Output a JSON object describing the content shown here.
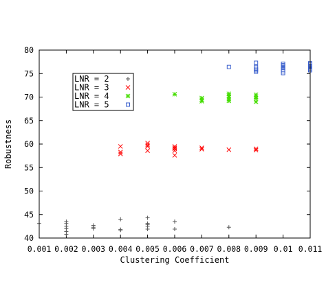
{
  "chart_data": {
    "type": "scatter",
    "title": "",
    "xlabel": "Clustering Coefficient",
    "ylabel": "Robustness",
    "xlim": [
      0.001,
      0.011
    ],
    "ylim": [
      40,
      80
    ],
    "xticks": [
      0.001,
      0.002,
      0.003,
      0.004,
      0.005,
      0.006,
      0.007,
      0.008,
      0.009,
      0.01,
      0.011
    ],
    "xtick_labels": [
      "0.001",
      "0.002",
      "0.003",
      "0.004",
      "0.005",
      "0.006",
      "0.007",
      "0.008",
      "0.009",
      "0.01",
      "0.011"
    ],
    "yticks": [
      40,
      45,
      50,
      55,
      60,
      65,
      70,
      75,
      80
    ],
    "ytick_labels": [
      "40",
      "45",
      "50",
      "55",
      "60",
      "65",
      "70",
      "75",
      "80"
    ],
    "grid": false,
    "legend_position": "upper-left",
    "series": [
      {
        "name": "LNR = 2",
        "marker": "plus",
        "color": "#555555",
        "points": [
          [
            0.001,
            43.1
          ],
          [
            0.002,
            43.5
          ],
          [
            0.002,
            43.1
          ],
          [
            0.002,
            42.5
          ],
          [
            0.002,
            42.0
          ],
          [
            0.002,
            41.4
          ],
          [
            0.002,
            40.8
          ],
          [
            0.003,
            42.7
          ],
          [
            0.003,
            42.3
          ],
          [
            0.003,
            42.0
          ],
          [
            0.004,
            44.0
          ],
          [
            0.004,
            41.8
          ],
          [
            0.004,
            41.7
          ],
          [
            0.005,
            44.3
          ],
          [
            0.005,
            43.1
          ],
          [
            0.005,
            42.9
          ],
          [
            0.005,
            42.5
          ],
          [
            0.005,
            41.9
          ],
          [
            0.006,
            43.5
          ],
          [
            0.006,
            41.9
          ],
          [
            0.008,
            42.3
          ]
        ]
      },
      {
        "name": "LNR = 3",
        "marker": "cross",
        "color": "#ff0000",
        "points": [
          [
            0.004,
            59.5
          ],
          [
            0.004,
            58.3
          ],
          [
            0.004,
            57.9
          ],
          [
            0.005,
            60.2
          ],
          [
            0.005,
            59.8
          ],
          [
            0.005,
            59.5
          ],
          [
            0.005,
            58.6
          ],
          [
            0.006,
            59.5
          ],
          [
            0.006,
            59.2
          ],
          [
            0.006,
            59.0
          ],
          [
            0.006,
            58.6
          ],
          [
            0.006,
            57.6
          ],
          [
            0.007,
            59.2
          ],
          [
            0.007,
            58.9
          ],
          [
            0.008,
            58.8
          ],
          [
            0.009,
            59.0
          ],
          [
            0.009,
            58.7
          ]
        ]
      },
      {
        "name": "LNR = 4",
        "marker": "star",
        "color": "#44dd00",
        "points": [
          [
            0.006,
            70.6
          ],
          [
            0.007,
            69.8
          ],
          [
            0.007,
            69.4
          ],
          [
            0.007,
            69.1
          ],
          [
            0.008,
            70.7
          ],
          [
            0.008,
            70.3
          ],
          [
            0.008,
            70.0
          ],
          [
            0.008,
            69.6
          ],
          [
            0.008,
            69.2
          ],
          [
            0.009,
            70.5
          ],
          [
            0.009,
            70.1
          ],
          [
            0.009,
            69.7
          ],
          [
            0.009,
            69.0
          ]
        ]
      },
      {
        "name": "LNR = 5",
        "marker": "square",
        "color": "#3a5fcd",
        "points": [
          [
            0.008,
            76.4
          ],
          [
            0.009,
            77.3
          ],
          [
            0.009,
            76.4
          ],
          [
            0.009,
            76.0
          ],
          [
            0.009,
            75.7
          ],
          [
            0.009,
            75.4
          ],
          [
            0.01,
            77.1
          ],
          [
            0.01,
            76.8
          ],
          [
            0.01,
            76.5
          ],
          [
            0.01,
            76.2
          ],
          [
            0.01,
            75.9
          ],
          [
            0.01,
            75.5
          ],
          [
            0.01,
            75.1
          ],
          [
            0.011,
            77.2
          ],
          [
            0.011,
            76.9
          ],
          [
            0.011,
            76.6
          ],
          [
            0.011,
            76.3
          ],
          [
            0.011,
            76.0
          ],
          [
            0.011,
            75.7
          ]
        ]
      }
    ]
  }
}
